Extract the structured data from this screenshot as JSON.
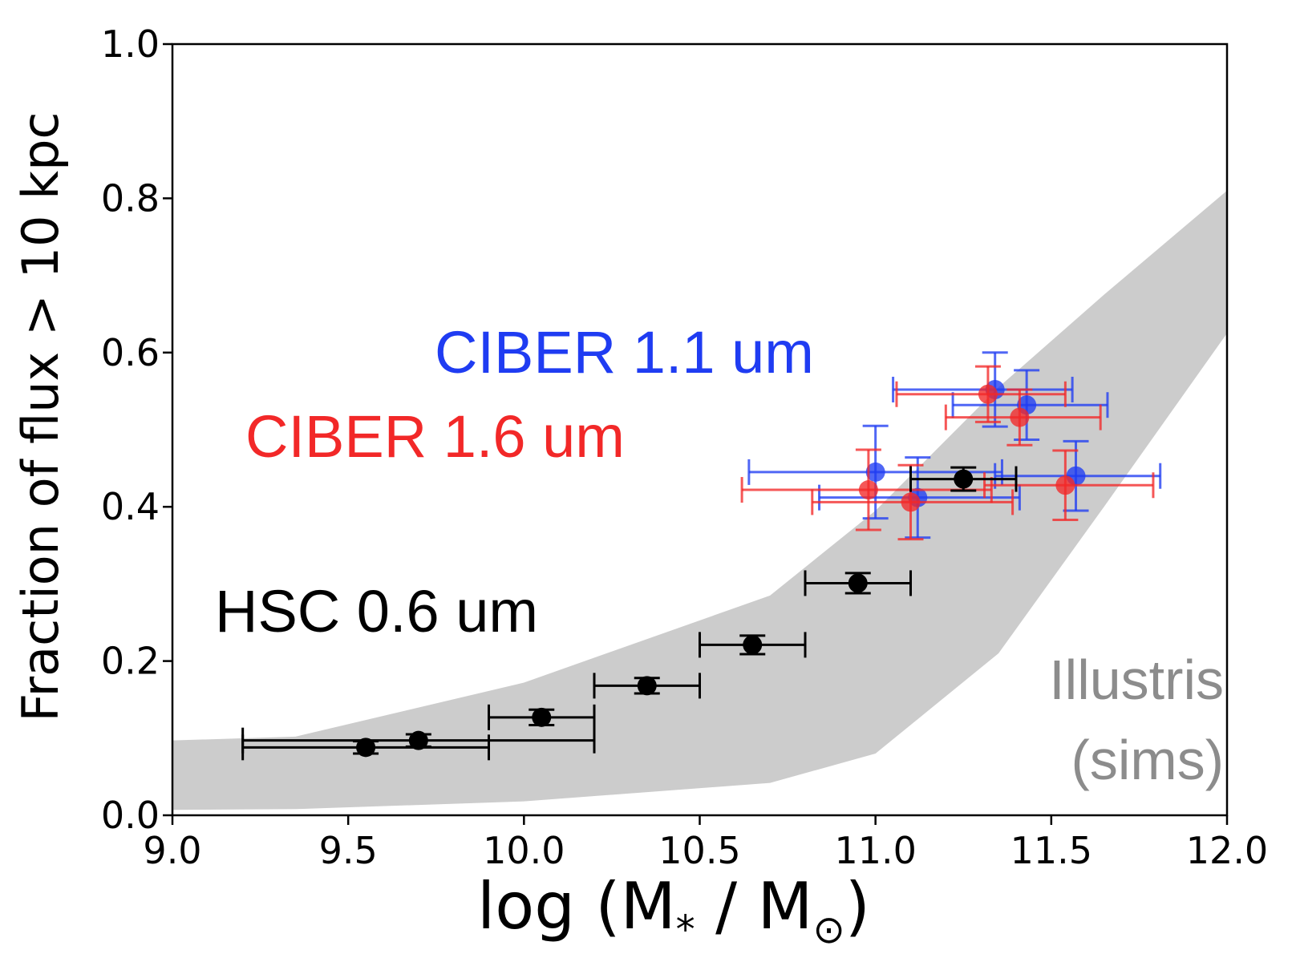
{
  "chart_data": {
    "type": "scatter",
    "title": "",
    "xlabel_parts": [
      "log (M",
      "*",
      " / M",
      "⊙",
      ")"
    ],
    "ylabel": "Fraction of flux > 10 kpc",
    "xlim": [
      9.0,
      12.0
    ],
    "ylim": [
      0.0,
      1.0
    ],
    "x_ticks": [
      9.0,
      9.5,
      10.0,
      10.5,
      11.0,
      11.5,
      12.0
    ],
    "x_tick_labels": [
      "9.0",
      "9.5",
      "10.0",
      "10.5",
      "11.0",
      "11.5",
      "12.0"
    ],
    "y_ticks": [
      0.0,
      0.2,
      0.4,
      0.6,
      0.8,
      1.0
    ],
    "y_tick_labels": [
      "0.0",
      "0.2",
      "0.4",
      "0.6",
      "0.8",
      "1.0"
    ],
    "grid": false,
    "band": {
      "name": "Illustris (sims)",
      "color": "#cccccc",
      "x": [
        9.0,
        9.35,
        10.0,
        10.7,
        11.0,
        11.35,
        11.65,
        12.0
      ],
      "upper": [
        0.097,
        0.102,
        0.172,
        0.285,
        0.395,
        0.555,
        0.675,
        0.81
      ],
      "lower": [
        0.007,
        0.008,
        0.018,
        0.042,
        0.08,
        0.21,
        0.4,
        0.625
      ]
    },
    "series": [
      {
        "name": "HSC 0.6 um",
        "color": "#000000",
        "points": [
          {
            "x": 9.55,
            "y": 0.088,
            "xerr": [
              9.2,
              9.9
            ],
            "yerr": 0.008
          },
          {
            "x": 9.7,
            "y": 0.097,
            "xerr": [
              9.2,
              10.2
            ],
            "yerr": 0.008
          },
          {
            "x": 10.05,
            "y": 0.127,
            "xerr": [
              9.9,
              10.2
            ],
            "yerr": 0.01
          },
          {
            "x": 10.35,
            "y": 0.168,
            "xerr": [
              10.2,
              10.5
            ],
            "yerr": 0.01
          },
          {
            "x": 10.65,
            "y": 0.221,
            "xerr": [
              10.5,
              10.8
            ],
            "yerr": 0.012
          },
          {
            "x": 10.95,
            "y": 0.301,
            "xerr": [
              10.8,
              11.1
            ],
            "yerr": 0.013
          },
          {
            "x": 11.25,
            "y": 0.436,
            "xerr": [
              11.1,
              11.4
            ],
            "yerr": 0.015
          }
        ]
      },
      {
        "name": "CIBER 1.1 um",
        "color": "#1f3cf2",
        "points": [
          {
            "x": 11.0,
            "y": 0.445,
            "xerr": [
              10.64,
              11.36
            ],
            "yerr": 0.06
          },
          {
            "x": 11.12,
            "y": 0.412,
            "xerr": [
              10.84,
              11.41
            ],
            "yerr": 0.052
          },
          {
            "x": 11.34,
            "y": 0.552,
            "xerr": [
              11.05,
              11.56
            ],
            "yerr": 0.048
          },
          {
            "x": 11.43,
            "y": 0.532,
            "xerr": [
              11.22,
              11.66
            ],
            "yerr": 0.045
          },
          {
            "x": 11.57,
            "y": 0.44,
            "xerr": [
              11.34,
              11.81
            ],
            "yerr": 0.045
          }
        ]
      },
      {
        "name": "CIBER 1.6 um",
        "color": "#f22828",
        "points": [
          {
            "x": 10.98,
            "y": 0.422,
            "xerr": [
              10.62,
              11.33
            ],
            "yerr": 0.052
          },
          {
            "x": 11.1,
            "y": 0.406,
            "xerr": [
              10.82,
              11.39
            ],
            "yerr": 0.048
          },
          {
            "x": 11.32,
            "y": 0.546,
            "xerr": [
              11.06,
              11.54
            ],
            "yerr": 0.036
          },
          {
            "x": 11.41,
            "y": 0.516,
            "xerr": [
              11.2,
              11.64
            ],
            "yerr": 0.036
          },
          {
            "x": 11.54,
            "y": 0.428,
            "xerr": [
              11.31,
              11.79
            ],
            "yerr": 0.045
          }
        ]
      }
    ],
    "annotations": [
      {
        "text": "CIBER 1.1 um",
        "color": "#1f3cf2"
      },
      {
        "text": "CIBER 1.6 um",
        "color": "#f22828"
      },
      {
        "text": "HSC 0.6 um",
        "color": "#000000"
      },
      {
        "text": "Illustris",
        "color": "#8c8c8c"
      },
      {
        "text": "(sims)",
        "color": "#8c8c8c"
      }
    ]
  }
}
